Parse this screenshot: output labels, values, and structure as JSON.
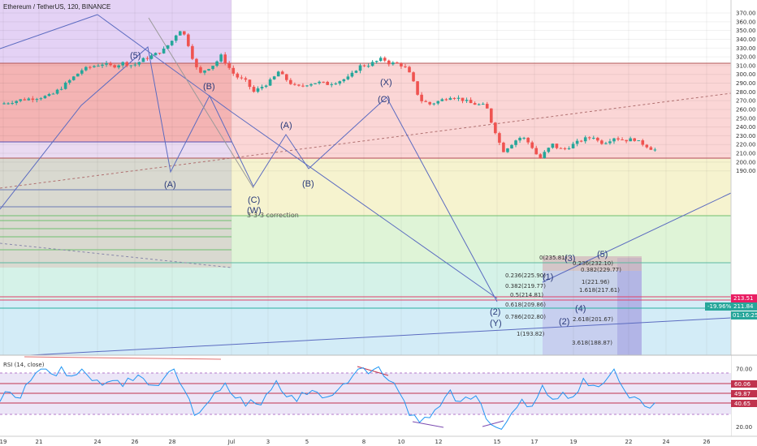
{
  "header": {
    "title": "Ethereum / TetherUS, 120, BINANCE"
  },
  "rsi": {
    "title": "RSI (14, close)"
  },
  "chart_data": {
    "type": "candlestick",
    "title": "Ethereum / TetherUS, 120, BINANCE",
    "price_axis": {
      "ticks": [
        370,
        360,
        350,
        340,
        330,
        320,
        310,
        300,
        290,
        280,
        270,
        260,
        250,
        240,
        230,
        220,
        210,
        200,
        190
      ],
      "range": [
        182,
        375
      ]
    },
    "time_axis": {
      "labels": [
        "19",
        "21",
        "24",
        "26",
        "28",
        "Jul",
        "3",
        "5",
        "8",
        "10",
        "12",
        "15",
        "17",
        "19",
        "22",
        "24",
        "26"
      ]
    },
    "rsi_axis": {
      "ticks": [
        70,
        20
      ],
      "range": [
        12,
        82
      ]
    },
    "price_tags": {
      "last": "213.51",
      "change": "-19.96%",
      "price2": "211.84",
      "countdown": "01:16:25"
    },
    "rsi_tags": [
      "60.06",
      "49.87",
      "40.65"
    ],
    "close_series": [
      {
        "t": 0,
        "p": 266
      },
      {
        "t": 2,
        "p": 271
      },
      {
        "t": 4,
        "p": 274
      },
      {
        "t": 5,
        "p": 276
      },
      {
        "t": 6,
        "p": 285
      },
      {
        "t": 7,
        "p": 295
      },
      {
        "t": 8,
        "p": 305
      },
      {
        "t": 9,
        "p": 309
      },
      {
        "t": 10,
        "p": 312
      },
      {
        "t": 11,
        "p": 309
      },
      {
        "t": 12,
        "p": 313
      },
      {
        "t": 13,
        "p": 310
      },
      {
        "t": 14,
        "p": 317
      },
      {
        "t": 15,
        "p": 322
      },
      {
        "t": 16,
        "p": 328
      },
      {
        "t": 17,
        "p": 341
      },
      {
        "t": 17.5,
        "p": 352
      },
      {
        "t": 18,
        "p": 345
      },
      {
        "t": 18.5,
        "p": 331
      },
      {
        "t": 19,
        "p": 312
      },
      {
        "t": 19.5,
        "p": 300
      },
      {
        "t": 20,
        "p": 305
      },
      {
        "t": 21,
        "p": 312
      },
      {
        "t": 21.6,
        "p": 321
      },
      {
        "t": 22,
        "p": 314
      },
      {
        "t": 22.6,
        "p": 304
      },
      {
        "t": 23,
        "p": 298
      },
      {
        "t": 24,
        "p": 292
      },
      {
        "t": 24.8,
        "p": 280
      },
      {
        "t": 25.2,
        "p": 283
      },
      {
        "t": 26,
        "p": 289
      },
      {
        "t": 26.6,
        "p": 294
      },
      {
        "t": 27.2,
        "p": 303
      },
      {
        "t": 27.8,
        "p": 296
      },
      {
        "t": 28.4,
        "p": 290
      },
      {
        "t": 29,
        "p": 285
      },
      {
        "t": 30,
        "p": 289
      },
      {
        "t": 31,
        "p": 291
      },
      {
        "t": 32,
        "p": 289
      },
      {
        "t": 33,
        "p": 292
      },
      {
        "t": 34,
        "p": 296
      },
      {
        "t": 34.5,
        "p": 301
      },
      {
        "t": 35,
        "p": 309
      },
      {
        "t": 36,
        "p": 311
      },
      {
        "t": 37,
        "p": 316
      },
      {
        "t": 37.4,
        "p": 318
      },
      {
        "t": 38,
        "p": 313
      },
      {
        "t": 39,
        "p": 312
      },
      {
        "t": 39.8,
        "p": 306
      },
      {
        "t": 40.5,
        "p": 288
      },
      {
        "t": 41,
        "p": 271
      },
      {
        "t": 42,
        "p": 266
      },
      {
        "t": 43,
        "p": 270
      },
      {
        "t": 44,
        "p": 275
      },
      {
        "t": 45,
        "p": 272
      },
      {
        "t": 46,
        "p": 267
      },
      {
        "t": 47.5,
        "p": 264
      },
      {
        "t": 48,
        "p": 246
      },
      {
        "t": 48.5,
        "p": 232
      },
      {
        "t": 49.1,
        "p": 212
      },
      {
        "t": 49.7,
        "p": 218
      },
      {
        "t": 50.5,
        "p": 226
      },
      {
        "t": 51,
        "p": 229
      },
      {
        "t": 51.5,
        "p": 224
      },
      {
        "t": 52,
        "p": 217
      },
      {
        "t": 52.7,
        "p": 203
      },
      {
        "t": 53.3,
        "p": 212
      },
      {
        "t": 54,
        "p": 220
      },
      {
        "t": 54.5,
        "p": 216
      },
      {
        "t": 55,
        "p": 214
      },
      {
        "t": 56,
        "p": 220
      },
      {
        "t": 57,
        "p": 226
      },
      {
        "t": 58,
        "p": 229
      },
      {
        "t": 58.5,
        "p": 223
      },
      {
        "t": 59,
        "p": 222
      },
      {
        "t": 60,
        "p": 228
      },
      {
        "t": 61,
        "p": 225
      },
      {
        "t": 62,
        "p": 226
      },
      {
        "t": 62.5,
        "p": 222
      },
      {
        "t": 63,
        "p": 220
      },
      {
        "t": 63.5,
        "p": 216
      },
      {
        "t": 64,
        "p": 214
      },
      {
        "t": 64.3,
        "p": 212
      }
    ],
    "rsi_series": [
      {
        "t": 0,
        "p": 42
      },
      {
        "t": 1,
        "p": 50
      },
      {
        "t": 2,
        "p": 45
      },
      {
        "t": 3,
        "p": 60
      },
      {
        "t": 4,
        "p": 70
      },
      {
        "t": 5,
        "p": 66
      },
      {
        "t": 6,
        "p": 72
      },
      {
        "t": 7,
        "p": 64
      },
      {
        "t": 8,
        "p": 70
      },
      {
        "t": 9,
        "p": 60
      },
      {
        "t": 10,
        "p": 56
      },
      {
        "t": 11,
        "p": 60
      },
      {
        "t": 12,
        "p": 55
      },
      {
        "t": 13,
        "p": 60
      },
      {
        "t": 14,
        "p": 62
      },
      {
        "t": 15,
        "p": 56
      },
      {
        "t": 16,
        "p": 62
      },
      {
        "t": 17,
        "p": 70
      },
      {
        "t": 18,
        "p": 52
      },
      {
        "t": 19,
        "p": 30
      },
      {
        "t": 20,
        "p": 38
      },
      {
        "t": 21,
        "p": 50
      },
      {
        "t": 22,
        "p": 58
      },
      {
        "t": 23,
        "p": 45
      },
      {
        "t": 24,
        "p": 38
      },
      {
        "t": 25,
        "p": 40
      },
      {
        "t": 26,
        "p": 48
      },
      {
        "t": 27,
        "p": 60
      },
      {
        "t": 28,
        "p": 46
      },
      {
        "t": 29,
        "p": 42
      },
      {
        "t": 30,
        "p": 48
      },
      {
        "t": 31,
        "p": 50
      },
      {
        "t": 32,
        "p": 46
      },
      {
        "t": 33,
        "p": 52
      },
      {
        "t": 34,
        "p": 58
      },
      {
        "t": 35,
        "p": 70
      },
      {
        "t": 36,
        "p": 66
      },
      {
        "t": 37,
        "p": 72
      },
      {
        "t": 38,
        "p": 60
      },
      {
        "t": 39,
        "p": 50
      },
      {
        "t": 40,
        "p": 30
      },
      {
        "t": 41,
        "p": 24
      },
      {
        "t": 42,
        "p": 28
      },
      {
        "t": 43,
        "p": 38
      },
      {
        "t": 44,
        "p": 52
      },
      {
        "t": 45,
        "p": 42
      },
      {
        "t": 46,
        "p": 44
      },
      {
        "t": 47,
        "p": 40
      },
      {
        "t": 48,
        "p": 22
      },
      {
        "t": 49,
        "p": 18
      },
      {
        "t": 50,
        "p": 32
      },
      {
        "t": 51,
        "p": 44
      },
      {
        "t": 52,
        "p": 38
      },
      {
        "t": 53,
        "p": 56
      },
      {
        "t": 54,
        "p": 44
      },
      {
        "t": 55,
        "p": 50
      },
      {
        "t": 56,
        "p": 46
      },
      {
        "t": 57,
        "p": 62
      },
      {
        "t": 58,
        "p": 56
      },
      {
        "t": 59,
        "p": 58
      },
      {
        "t": 60,
        "p": 70
      },
      {
        "t": 61,
        "p": 52
      },
      {
        "t": 62,
        "p": 46
      },
      {
        "t": 63,
        "p": 38
      },
      {
        "t": 64,
        "p": 41
      }
    ],
    "wave_labels": [
      "(5)",
      "(B)",
      "(A)",
      "(C)",
      "(W)",
      "(A)",
      "(B)",
      "(X)",
      "(C)",
      "(2)",
      "(Y)",
      "(1)",
      "(2)",
      "(3)",
      "(4)",
      "(5)"
    ],
    "annotation": "3-3-3 correction",
    "fib_retracement": [
      "0(235.81)",
      "0.236(225.90)",
      "0.382(219.77)",
      "0.5(214.81)",
      "0.618(209.86)",
      "0.786(202.80)",
      "1(193.82)"
    ],
    "fib_extension": [
      "0.236(232.10)",
      "0.382(229.77)",
      "1(221.96)",
      "1.618(217.61)",
      "2.618(201.67)",
      "3.618(188.87)"
    ],
    "colors": {
      "up": "#26a69a",
      "down": "#ef5350",
      "price_line": "#e91e63",
      "trend": "#5b6bc0",
      "rsi": "#2196f3"
    }
  }
}
